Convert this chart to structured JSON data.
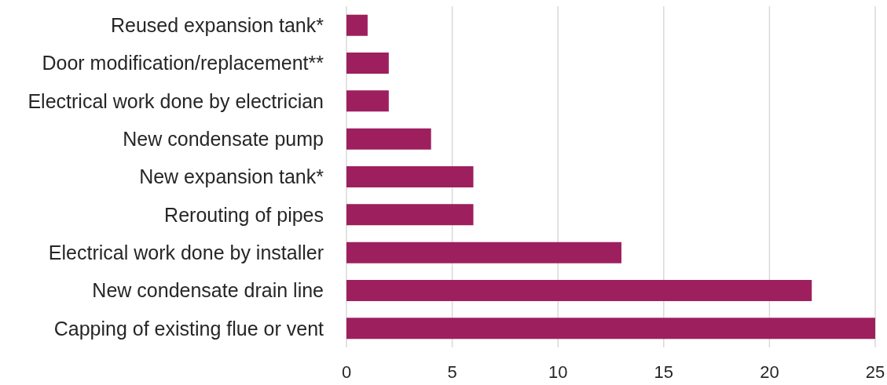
{
  "chart_data": {
    "type": "bar",
    "orientation": "horizontal",
    "categories": [
      "Reused expansion tank*",
      "Door modification/replacement**",
      "Electrical work done by electrician",
      "New condensate pump",
      "New expansion tank*",
      "Rerouting of pipes",
      "Electrical work done by installer",
      "New condensate drain line",
      "Capping of existing flue or vent"
    ],
    "values": [
      1,
      2,
      2,
      4,
      6,
      6,
      13,
      22,
      25
    ],
    "color": "#9e1f5e",
    "xlim": [
      0,
      25
    ],
    "xticks": [
      0,
      5,
      10,
      15,
      20,
      25
    ],
    "grid": "x"
  }
}
